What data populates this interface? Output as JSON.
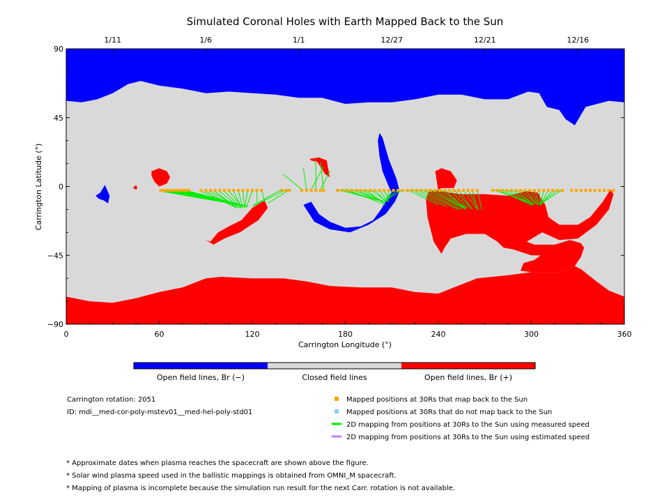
{
  "chart_data": {
    "type": "map",
    "title": "Simulated Coronal Holes with Earth Mapped Back to the Sun",
    "xlabel": "Carrington Longitude (°)",
    "ylabel": "Carrington Latitude (°)",
    "xlim": [
      0,
      360
    ],
    "ylim": [
      -90,
      90
    ],
    "x_ticks": [
      "0",
      "60",
      "120",
      "180",
      "240",
      "300",
      "360"
    ],
    "y_ticks": [
      "90",
      "45",
      "0",
      "−45",
      "−90"
    ],
    "top_axis_dates": [
      {
        "lon": 30,
        "label": "1/11"
      },
      {
        "lon": 90,
        "label": "1/6"
      },
      {
        "lon": 150,
        "label": "1/1"
      },
      {
        "lon": 210,
        "label": "12/27"
      },
      {
        "lon": 270,
        "label": "12/21"
      },
      {
        "lon": 330,
        "label": "12/16"
      }
    ],
    "colors": {
      "open_negative": "#0000ff",
      "closed": "#d9d9d9",
      "open_positive": "#ff0000",
      "mapped_point": "#ffa500",
      "unmapped_point": "#87cefa",
      "measured_line": "#00ee00",
      "estimated_line": "#bf7fff"
    },
    "colorbar": [
      "Open field lines, Br (−)",
      "Closed field lines",
      "Open field lines, Br (+)"
    ],
    "regions": {
      "north_polar_hole_negative": [
        [
          0,
          90
        ],
        [
          360,
          90
        ],
        [
          360,
          55
        ],
        [
          350,
          56
        ],
        [
          335,
          52
        ],
        [
          328,
          40
        ],
        [
          322,
          44
        ],
        [
          318,
          50
        ],
        [
          310,
          52
        ],
        [
          305,
          61
        ],
        [
          298,
          62
        ],
        [
          285,
          57
        ],
        [
          270,
          57
        ],
        [
          255,
          60
        ],
        [
          240,
          60
        ],
        [
          225,
          57
        ],
        [
          210,
          55
        ],
        [
          195,
          55
        ],
        [
          180,
          54
        ],
        [
          165,
          58
        ],
        [
          150,
          58
        ],
        [
          135,
          60
        ],
        [
          120,
          61
        ],
        [
          105,
          62
        ],
        [
          90,
          61
        ],
        [
          75,
          64
        ],
        [
          60,
          66
        ],
        [
          48,
          69
        ],
        [
          40,
          67
        ],
        [
          30,
          61
        ],
        [
          20,
          57
        ],
        [
          10,
          55
        ],
        [
          0,
          56
        ]
      ],
      "south_polar_hole_positive": [
        [
          0,
          -90
        ],
        [
          360,
          -90
        ],
        [
          360,
          -72
        ],
        [
          350,
          -68
        ],
        [
          342,
          -62
        ],
        [
          332,
          -54
        ],
        [
          328,
          -52
        ],
        [
          318,
          -56
        ],
        [
          300,
          -56
        ],
        [
          285,
          -58
        ],
        [
          265,
          -60
        ],
        [
          250,
          -66
        ],
        [
          240,
          -70
        ],
        [
          225,
          -69
        ],
        [
          210,
          -66
        ],
        [
          190,
          -66
        ],
        [
          170,
          -65
        ],
        [
          155,
          -62
        ],
        [
          140,
          -60
        ],
        [
          120,
          -60
        ],
        [
          100,
          -59
        ],
        [
          90,
          -60
        ],
        [
          75,
          -66
        ],
        [
          60,
          -69
        ],
        [
          45,
          -73
        ],
        [
          30,
          -76
        ],
        [
          15,
          -75
        ],
        [
          0,
          -72
        ]
      ],
      "hole_pos_lon55_60": [
        [
          55,
          10
        ],
        [
          60,
          12
        ],
        [
          65,
          10
        ],
        [
          67,
          6
        ],
        [
          65,
          2
        ],
        [
          60,
          0
        ],
        [
          57,
          3
        ],
        [
          55,
          7
        ]
      ],
      "hole_pos_lon44": [
        [
          43,
          -1
        ],
        [
          45,
          1
        ],
        [
          46,
          -1
        ],
        [
          45,
          -2
        ]
      ],
      "hole_neg_lon20": [
        [
          19,
          -6
        ],
        [
          22,
          -4
        ],
        [
          25,
          1
        ],
        [
          28,
          -6
        ],
        [
          27,
          -11
        ],
        [
          24,
          -9
        ],
        [
          21,
          -8
        ]
      ],
      "hole_pos_lon90_130": [
        [
          90,
          -35
        ],
        [
          93,
          -36
        ],
        [
          98,
          -30
        ],
        [
          105,
          -26
        ],
        [
          113,
          -22
        ],
        [
          120,
          -14
        ],
        [
          128,
          -9
        ],
        [
          130,
          -14
        ],
        [
          124,
          -22
        ],
        [
          112,
          -30
        ],
        [
          102,
          -34
        ],
        [
          95,
          -38
        ]
      ],
      "hole_neg_lon155": [
        [
          153,
          -12
        ],
        [
          158,
          -10
        ],
        [
          163,
          -18
        ],
        [
          170,
          -23
        ],
        [
          180,
          -27
        ],
        [
          190,
          -26
        ],
        [
          198,
          -22
        ],
        [
          203,
          -15
        ],
        [
          207,
          -8
        ],
        [
          210,
          -4
        ],
        [
          208,
          0
        ],
        [
          204,
          10
        ],
        [
          202,
          20
        ],
        [
          201,
          30
        ],
        [
          202,
          35
        ],
        [
          204,
          32
        ],
        [
          208,
          18
        ],
        [
          213,
          5
        ],
        [
          215,
          -3
        ],
        [
          212,
          -10
        ],
        [
          206,
          -18
        ],
        [
          195,
          -25
        ],
        [
          183,
          -30
        ],
        [
          170,
          -28
        ],
        [
          160,
          -23
        ]
      ],
      "hole_pos_lon158": [
        [
          157,
          18
        ],
        [
          163,
          19
        ],
        [
          168,
          17
        ],
        [
          170,
          6
        ],
        [
          167,
          8
        ],
        [
          162,
          16
        ],
        [
          158,
          17
        ]
      ],
      "hole_pos_lon230_350": [
        [
          238,
          10
        ],
        [
          242,
          12
        ],
        [
          248,
          10
        ],
        [
          252,
          4
        ],
        [
          250,
          -1
        ],
        [
          242,
          -1
        ],
        [
          238,
          -3
        ],
        [
          234,
          -3
        ],
        [
          232,
          -8
        ],
        [
          233,
          -20
        ],
        [
          237,
          -36
        ],
        [
          242,
          -44
        ],
        [
          244,
          -40
        ],
        [
          248,
          -34
        ],
        [
          258,
          -31
        ],
        [
          270,
          -31
        ],
        [
          278,
          -36
        ],
        [
          282,
          -40
        ],
        [
          288,
          -41
        ],
        [
          300,
          -45
        ],
        [
          306,
          -45
        ],
        [
          302,
          -48
        ],
        [
          295,
          -50
        ],
        [
          293,
          -55
        ],
        [
          300,
          -56
        ],
        [
          318,
          -56
        ],
        [
          328,
          -52
        ],
        [
          332,
          -46
        ],
        [
          334,
          -40
        ],
        [
          332,
          -37
        ],
        [
          325,
          -35
        ],
        [
          315,
          -38
        ],
        [
          302,
          -38
        ],
        [
          297,
          -36
        ],
        [
          307,
          -30
        ],
        [
          318,
          -35
        ],
        [
          330,
          -34
        ],
        [
          342,
          -25
        ],
        [
          350,
          -15
        ],
        [
          353,
          -5
        ],
        [
          351,
          -2
        ],
        [
          346,
          -10
        ],
        [
          338,
          -20
        ],
        [
          330,
          -25
        ],
        [
          318,
          -25
        ],
        [
          311,
          -20
        ],
        [
          309,
          -12
        ],
        [
          304,
          -4
        ],
        [
          297,
          -3
        ],
        [
          285,
          -6
        ],
        [
          270,
          -5
        ],
        [
          255,
          -5
        ],
        [
          240,
          -3
        ]
      ]
    },
    "mapping_lines": [
      [
        61,
        -3,
        117,
        -13
      ],
      [
        63,
        -3,
        117,
        -13
      ],
      [
        65,
        -3,
        117,
        -13
      ],
      [
        67,
        -3,
        117,
        -13
      ],
      [
        69,
        -3,
        117,
        -13
      ],
      [
        71,
        -3,
        117,
        -13
      ],
      [
        73,
        -3,
        117,
        -13
      ],
      [
        75,
        -3,
        117,
        -13
      ],
      [
        77,
        -3,
        117,
        -13
      ],
      [
        79,
        -3,
        117,
        -13
      ],
      [
        87,
        -3,
        110,
        -14
      ],
      [
        90,
        -3,
        110,
        -14
      ],
      [
        93,
        -3,
        112,
        -14
      ],
      [
        96,
        -3,
        110,
        -14
      ],
      [
        99,
        -3,
        112,
        -14
      ],
      [
        102,
        -3,
        113,
        -14
      ],
      [
        105,
        -3,
        114,
        -14
      ],
      [
        108,
        -3,
        113,
        -14
      ],
      [
        111,
        -3,
        114,
        -14
      ],
      [
        114,
        -3,
        115,
        -14
      ],
      [
        117,
        -3,
        115,
        -14
      ],
      [
        120,
        -3,
        116,
        -14
      ],
      [
        123,
        -2,
        123,
        -10
      ],
      [
        126,
        -2,
        128,
        -10
      ],
      [
        139,
        -2,
        121,
        -12
      ],
      [
        142,
        -2,
        120,
        -13
      ],
      [
        144,
        -2,
        130,
        -11
      ],
      [
        152,
        -2,
        140,
        8
      ],
      [
        155,
        -2,
        153,
        12
      ],
      [
        158,
        -2,
        166,
        13
      ],
      [
        161,
        -2,
        161,
        18
      ],
      [
        164,
        -2,
        170,
        10
      ],
      [
        166,
        -2,
        164,
        16
      ],
      [
        175,
        -2,
        205,
        -10
      ],
      [
        178,
        -2,
        205,
        -10
      ],
      [
        181,
        -2,
        206,
        -12
      ],
      [
        184,
        -2,
        205,
        -10
      ],
      [
        187,
        -2,
        204,
        -10
      ],
      [
        190,
        -2,
        205,
        -10
      ],
      [
        193,
        -2,
        205,
        -11
      ],
      [
        196,
        -2,
        207,
        -10
      ],
      [
        199,
        -2,
        206,
        -10
      ],
      [
        202,
        -2,
        207,
        -10
      ],
      [
        205,
        -2,
        208,
        -10
      ],
      [
        208,
        -2,
        207,
        -10
      ],
      [
        211,
        -2,
        206,
        -9
      ],
      [
        214,
        -2,
        206,
        -9
      ],
      [
        217,
        -2,
        206,
        -9
      ],
      [
        220,
        -2,
        240,
        -12
      ],
      [
        223,
        -2,
        245,
        -13
      ],
      [
        226,
        -2,
        253,
        -15
      ],
      [
        229,
        -2,
        255,
        -15
      ],
      [
        232,
        -2,
        256,
        -14
      ],
      [
        235,
        -2,
        258,
        -15
      ],
      [
        238,
        -2,
        257,
        -14
      ],
      [
        241,
        -2,
        258,
        -14
      ],
      [
        244,
        -2,
        258,
        -15
      ],
      [
        247,
        -2,
        259,
        -14
      ],
      [
        250,
        -2,
        262,
        -15
      ],
      [
        253,
        -2,
        262,
        -15
      ],
      [
        256,
        -2,
        265,
        -15
      ],
      [
        259,
        -2,
        266,
        -15
      ],
      [
        262,
        -2,
        265,
        -15
      ],
      [
        265,
        -2,
        268,
        -15
      ],
      [
        275,
        -2,
        298,
        -10
      ],
      [
        278,
        -2,
        300,
        -12
      ],
      [
        281,
        -2,
        300,
        -12
      ],
      [
        284,
        -2,
        301,
        -12
      ],
      [
        287,
        -2,
        302,
        -12
      ],
      [
        290,
        -2,
        302,
        -12
      ],
      [
        293,
        -2,
        304,
        -12
      ],
      [
        296,
        -2,
        304,
        -12
      ],
      [
        299,
        -2,
        305,
        -12
      ],
      [
        302,
        -2,
        305,
        -12
      ],
      [
        305,
        -2,
        306,
        -12
      ],
      [
        308,
        -2,
        306,
        -12
      ],
      [
        311,
        -2,
        306,
        -12
      ],
      [
        314,
        -2,
        306,
        -12
      ],
      [
        317,
        -2,
        305,
        -12
      ],
      [
        320,
        -2,
        305,
        -12
      ]
    ],
    "mapped_points_lon": [
      61,
      63,
      65,
      67,
      69,
      71,
      73,
      75,
      77,
      79,
      87,
      90,
      93,
      96,
      99,
      102,
      105,
      108,
      111,
      114,
      117,
      120,
      123,
      126,
      139,
      142,
      144,
      152,
      155,
      158,
      161,
      164,
      166,
      175,
      178,
      181,
      184,
      187,
      190,
      193,
      196,
      199,
      202,
      205,
      208,
      211,
      214,
      217,
      220,
      223,
      226,
      229,
      232,
      235,
      238,
      241,
      244,
      247,
      250,
      253,
      256,
      259,
      262,
      265,
      275,
      278,
      281,
      284,
      287,
      290,
      293,
      296,
      299,
      302,
      305,
      308,
      311,
      314,
      317,
      320,
      326,
      329,
      332,
      335,
      338,
      341,
      344,
      347,
      350,
      353
    ],
    "mapped_points_lat": -2.5,
    "legend": {
      "mapped_label": "Mapped positions at 30Rs that map back to the Sun",
      "unmapped_label": "Mapped positions at 30Rs that do not map back to the Sun",
      "measured_label": "2D mapping from positions at 30Rs to the Sun using measured speed",
      "estimated_label": "2D mapping from positions at 30Rs to the Sun using estimated speed"
    }
  },
  "info": {
    "rotation": "Carrington rotation: 2051",
    "run_id": "ID: mdi__med-cor-poly-mstev01__med-hel-poly-std01"
  },
  "notes": [
    "* Approximate dates when plasma reaches the spacecraft are shown above the figure.",
    "* Solar wind plasma speed used in the ballistic mappings is obtained from OMNI_M spacecraft.",
    "* Mapping of plasma is incomplete because the simulation run result for the next Carr. rotation is not available."
  ]
}
